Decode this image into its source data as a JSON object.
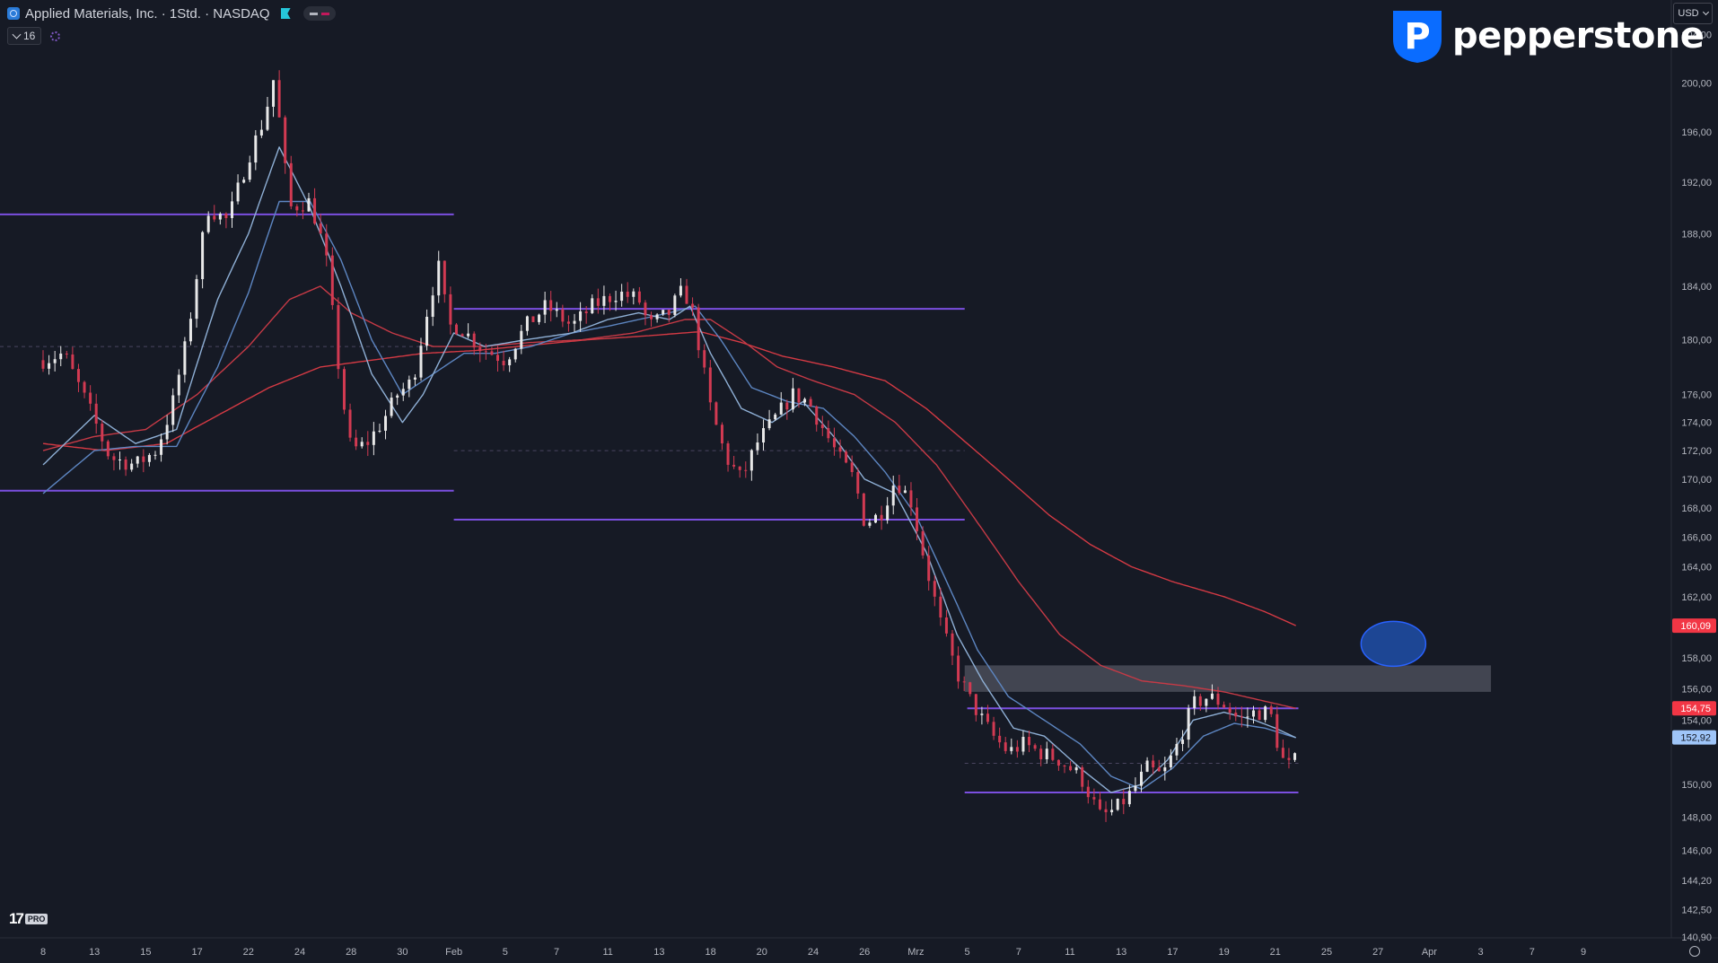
{
  "header": {
    "symbol_title": "Applied Materials, Inc. · 1Std. · NASDAQ",
    "indicator_count": "16"
  },
  "brand": {
    "name": "pepperstone",
    "mark_letter": "P"
  },
  "currency": {
    "label": "USD"
  },
  "watermark": {
    "mark": "17",
    "badge": "PRO"
  },
  "colors": {
    "background": "#161a25",
    "candle_up": "#e8e8e8",
    "candle_down": "#d23a52",
    "ema_fast": "#8fb0d6",
    "ema_slow": "#5d86c2",
    "sma_mid": "#c63a46",
    "sma_long": "#d43a44",
    "level_line": "#7b4fe0",
    "zone_fill": "#4a4e59",
    "target_circle": "#2962ff",
    "price_tag_red": "#f23645",
    "price_tag_blue": "#9fc5f8"
  },
  "chart_data": {
    "type": "candlestick",
    "title": "",
    "xlabel": "",
    "ylabel": "",
    "ylim": [
      140.9,
      206.0
    ],
    "y_scale": "log",
    "grid": false,
    "legend": "none",
    "y_ticks": [
      "140,90",
      "142,50",
      "144,20",
      "146,00",
      "148,00",
      "150,00",
      "154,00",
      "156,00",
      "158,00",
      "160,00",
      "162,00",
      "164,00",
      "166,00",
      "168,00",
      "170,00",
      "172,00",
      "174,00",
      "176,00",
      "180,00",
      "184,00",
      "188,00",
      "192,00",
      "196,00",
      "200,00",
      "204,00"
    ],
    "x_ticks": [
      "8",
      "13",
      "15",
      "17",
      "22",
      "24",
      "28",
      "30",
      "Feb",
      "5",
      "7",
      "11",
      "13",
      "18",
      "20",
      "24",
      "26",
      "Mrz",
      "5",
      "7",
      "11",
      "13",
      "17",
      "19",
      "21",
      "25",
      "27",
      "Apr",
      "3",
      "7",
      "9"
    ],
    "x_tick_pos": [
      0,
      1,
      2,
      3,
      4,
      5,
      6,
      7,
      8,
      9,
      10,
      11,
      12,
      13,
      14,
      15,
      16,
      17,
      18,
      19,
      20,
      21,
      22,
      23,
      24,
      25,
      26,
      27,
      28,
      29,
      30
    ],
    "price_anchors": [
      [
        0.0,
        178.5
      ],
      [
        0.4,
        179.0
      ],
      [
        0.9,
        175.0
      ],
      [
        1.3,
        171.5
      ],
      [
        1.8,
        171.0
      ],
      [
        2.2,
        172.0
      ],
      [
        2.5,
        175.0
      ],
      [
        2.8,
        180.0
      ],
      [
        3.2,
        190.0
      ],
      [
        3.6,
        189.0
      ],
      [
        4.0,
        194.0
      ],
      [
        4.3,
        197.0
      ],
      [
        4.5,
        200.5
      ],
      [
        4.6,
        197.0
      ],
      [
        4.8,
        190.0
      ],
      [
        5.2,
        190.5
      ],
      [
        5.5,
        186.5
      ],
      [
        5.8,
        176.5
      ],
      [
        6.0,
        172.0
      ],
      [
        6.3,
        172.5
      ],
      [
        6.6,
        174.0
      ],
      [
        6.9,
        176.0
      ],
      [
        7.2,
        177.0
      ],
      [
        7.5,
        182.5
      ],
      [
        7.7,
        185.5
      ],
      [
        7.9,
        181.0
      ],
      [
        8.1,
        181.0
      ],
      [
        8.5,
        179.5
      ],
      [
        9.0,
        178.5
      ],
      [
        9.4,
        181.0
      ],
      [
        9.8,
        182.5
      ],
      [
        10.3,
        181.0
      ],
      [
        10.7,
        182.5
      ],
      [
        11.2,
        183.5
      ],
      [
        11.6,
        183.0
      ],
      [
        11.8,
        181.0
      ],
      [
        12.2,
        182.0
      ],
      [
        12.4,
        183.5
      ],
      [
        12.6,
        183.0
      ],
      [
        13.0,
        175.0
      ],
      [
        13.3,
        171.5
      ],
      [
        13.6,
        170.0
      ],
      [
        13.9,
        172.5
      ],
      [
        14.3,
        174.5
      ],
      [
        14.6,
        176.0
      ],
      [
        14.9,
        175.5
      ],
      [
        15.2,
        173.5
      ],
      [
        15.5,
        171.5
      ],
      [
        15.8,
        170.0
      ],
      [
        16.0,
        167.0
      ],
      [
        16.3,
        167.5
      ],
      [
        16.6,
        170.0
      ],
      [
        16.9,
        168.5
      ],
      [
        17.2,
        164.0
      ],
      [
        17.5,
        160.0
      ],
      [
        17.8,
        157.0
      ],
      [
        18.1,
        155.0
      ],
      [
        18.5,
        153.0
      ],
      [
        18.8,
        152.0
      ],
      [
        19.1,
        152.5
      ],
      [
        19.4,
        152.0
      ],
      [
        19.8,
        151.5
      ],
      [
        20.2,
        150.5
      ],
      [
        20.6,
        148.0
      ],
      [
        20.9,
        148.5
      ],
      [
        21.2,
        149.5
      ],
      [
        21.5,
        151.0
      ],
      [
        21.8,
        150.5
      ],
      [
        22.1,
        152.5
      ],
      [
        22.4,
        155.0
      ],
      [
        22.7,
        155.5
      ],
      [
        23.0,
        155.0
      ],
      [
        23.3,
        154.0
      ],
      [
        23.6,
        154.5
      ],
      [
        23.9,
        154.5
      ],
      [
        24.0,
        153.0
      ],
      [
        24.2,
        151.0
      ],
      [
        24.4,
        151.5
      ]
    ],
    "ema_fast_anchors": [
      [
        0,
        171.0
      ],
      [
        1.0,
        174.5
      ],
      [
        1.8,
        172.5
      ],
      [
        2.6,
        173.5
      ],
      [
        3.4,
        183.0
      ],
      [
        4.0,
        188.0
      ],
      [
        4.6,
        194.8
      ],
      [
        5.2,
        190.0
      ],
      [
        5.8,
        184.0
      ],
      [
        6.4,
        177.5
      ],
      [
        7.0,
        174.0
      ],
      [
        7.4,
        176.0
      ],
      [
        8.0,
        180.5
      ],
      [
        8.6,
        179.5
      ],
      [
        9.4,
        180.0
      ],
      [
        10.3,
        180.5
      ],
      [
        11.0,
        181.5
      ],
      [
        11.6,
        182.0
      ],
      [
        12.2,
        181.5
      ],
      [
        12.6,
        182.5
      ],
      [
        13.0,
        179.0
      ],
      [
        13.6,
        175.0
      ],
      [
        14.2,
        174.0
      ],
      [
        14.8,
        175.5
      ],
      [
        15.4,
        173.0
      ],
      [
        16.0,
        170.0
      ],
      [
        16.6,
        169.0
      ],
      [
        17.2,
        165.0
      ],
      [
        17.8,
        159.5
      ],
      [
        18.3,
        156.5
      ],
      [
        18.9,
        153.5
      ],
      [
        19.5,
        153.0
      ],
      [
        20.2,
        151.0
      ],
      [
        20.8,
        149.5
      ],
      [
        21.4,
        150.0
      ],
      [
        21.9,
        151.5
      ],
      [
        22.4,
        154.0
      ],
      [
        23.0,
        154.5
      ],
      [
        23.6,
        154.0
      ],
      [
        24.0,
        153.5
      ],
      [
        24.4,
        152.9
      ]
    ],
    "ema_slow_anchors": [
      [
        0,
        169.0
      ],
      [
        1.0,
        172.0
      ],
      [
        1.8,
        172.3
      ],
      [
        2.6,
        172.3
      ],
      [
        3.4,
        178.0
      ],
      [
        4.0,
        183.5
      ],
      [
        4.6,
        190.5
      ],
      [
        5.2,
        190.5
      ],
      [
        5.8,
        186.0
      ],
      [
        6.4,
        180.0
      ],
      [
        7.0,
        176.0
      ],
      [
        7.6,
        177.5
      ],
      [
        8.2,
        179.0
      ],
      [
        8.8,
        179.0
      ],
      [
        9.5,
        179.5
      ],
      [
        10.3,
        180.5
      ],
      [
        11.0,
        181.0
      ],
      [
        11.6,
        181.5
      ],
      [
        12.2,
        182.0
      ],
      [
        12.7,
        182.5
      ],
      [
        13.2,
        180.0
      ],
      [
        13.8,
        176.5
      ],
      [
        14.5,
        175.5
      ],
      [
        15.2,
        175.0
      ],
      [
        15.8,
        173.0
      ],
      [
        16.4,
        170.5
      ],
      [
        17.0,
        167.5
      ],
      [
        17.6,
        163.0
      ],
      [
        18.2,
        158.5
      ],
      [
        18.8,
        155.5
      ],
      [
        19.5,
        154.0
      ],
      [
        20.2,
        152.5
      ],
      [
        20.8,
        150.5
      ],
      [
        21.4,
        149.7
      ],
      [
        22.0,
        151.0
      ],
      [
        22.6,
        153.0
      ],
      [
        23.2,
        153.8
      ],
      [
        23.8,
        153.5
      ],
      [
        24.4,
        152.9
      ]
    ],
    "sma_mid_anchors": [
      [
        0,
        172.0
      ],
      [
        1.0,
        173.0
      ],
      [
        2.0,
        173.5
      ],
      [
        3.0,
        176.0
      ],
      [
        4.0,
        179.5
      ],
      [
        4.8,
        183.0
      ],
      [
        5.4,
        184.0
      ],
      [
        6.0,
        182.0
      ],
      [
        6.8,
        180.5
      ],
      [
        7.6,
        179.5
      ],
      [
        8.5,
        179.5
      ],
      [
        9.5,
        179.8
      ],
      [
        10.5,
        180.0
      ],
      [
        11.5,
        180.5
      ],
      [
        12.5,
        181.5
      ],
      [
        13.0,
        181.5
      ],
      [
        13.6,
        180.0
      ],
      [
        14.3,
        178.0
      ],
      [
        15.0,
        177.0
      ],
      [
        15.8,
        176.0
      ],
      [
        16.6,
        174.0
      ],
      [
        17.4,
        171.0
      ],
      [
        18.2,
        167.0
      ],
      [
        19.0,
        163.0
      ],
      [
        19.8,
        159.5
      ],
      [
        20.6,
        157.5
      ],
      [
        21.4,
        156.5
      ],
      [
        22.2,
        156.2
      ],
      [
        23.0,
        155.8
      ],
      [
        23.8,
        155.2
      ],
      [
        24.4,
        154.75
      ]
    ],
    "sma_long_anchors": [
      [
        0,
        172.5
      ],
      [
        1.2,
        172.0
      ],
      [
        2.4,
        172.5
      ],
      [
        3.4,
        174.5
      ],
      [
        4.4,
        176.5
      ],
      [
        5.4,
        178.0
      ],
      [
        6.4,
        178.5
      ],
      [
        7.4,
        179.0
      ],
      [
        8.4,
        179.2
      ],
      [
        9.5,
        179.6
      ],
      [
        10.6,
        180.0
      ],
      [
        11.8,
        180.3
      ],
      [
        12.8,
        180.6
      ],
      [
        13.6,
        179.8
      ],
      [
        14.4,
        178.8
      ],
      [
        15.4,
        178.0
      ],
      [
        16.4,
        177.0
      ],
      [
        17.2,
        175.0
      ],
      [
        18.0,
        172.5
      ],
      [
        18.8,
        170.0
      ],
      [
        19.6,
        167.5
      ],
      [
        20.4,
        165.5
      ],
      [
        21.2,
        164.0
      ],
      [
        22.0,
        163.0
      ],
      [
        23.0,
        162.0
      ],
      [
        23.8,
        161.0
      ],
      [
        24.4,
        160.09
      ]
    ],
    "horizontal_levels": [
      {
        "price": 189.5,
        "from": -1.0,
        "to": 8.0
      },
      {
        "price": 182.3,
        "from": 8.0,
        "to": 17.95
      },
      {
        "price": 169.2,
        "from": -1.0,
        "to": 8.0
      },
      {
        "price": 167.2,
        "from": 8.0,
        "to": 17.95
      },
      {
        "price": 154.75,
        "from": 18.0,
        "to": 24.45
      },
      {
        "price": 149.5,
        "from": 17.95,
        "to": 24.45
      }
    ],
    "dashed_levels": [
      {
        "price": 179.5,
        "from": -1.0,
        "to": 8.0
      },
      {
        "price": 172.0,
        "from": 8.0,
        "to": 17.95
      },
      {
        "price": 151.3,
        "from": 17.95,
        "to": 24.45
      }
    ],
    "resistance_zone": {
      "price_low": 155.8,
      "price_high": 157.5,
      "from": 17.95,
      "to": 28.2
    },
    "target_marker": {
      "x": 26.3,
      "price": 158.9
    },
    "price_tags": [
      {
        "label": "160,09",
        "price": 160.09,
        "kind": "red"
      },
      {
        "label": "154,75",
        "price": 154.75,
        "kind": "red"
      },
      {
        "label": "152,92",
        "price": 152.92,
        "kind": "blue"
      }
    ]
  }
}
